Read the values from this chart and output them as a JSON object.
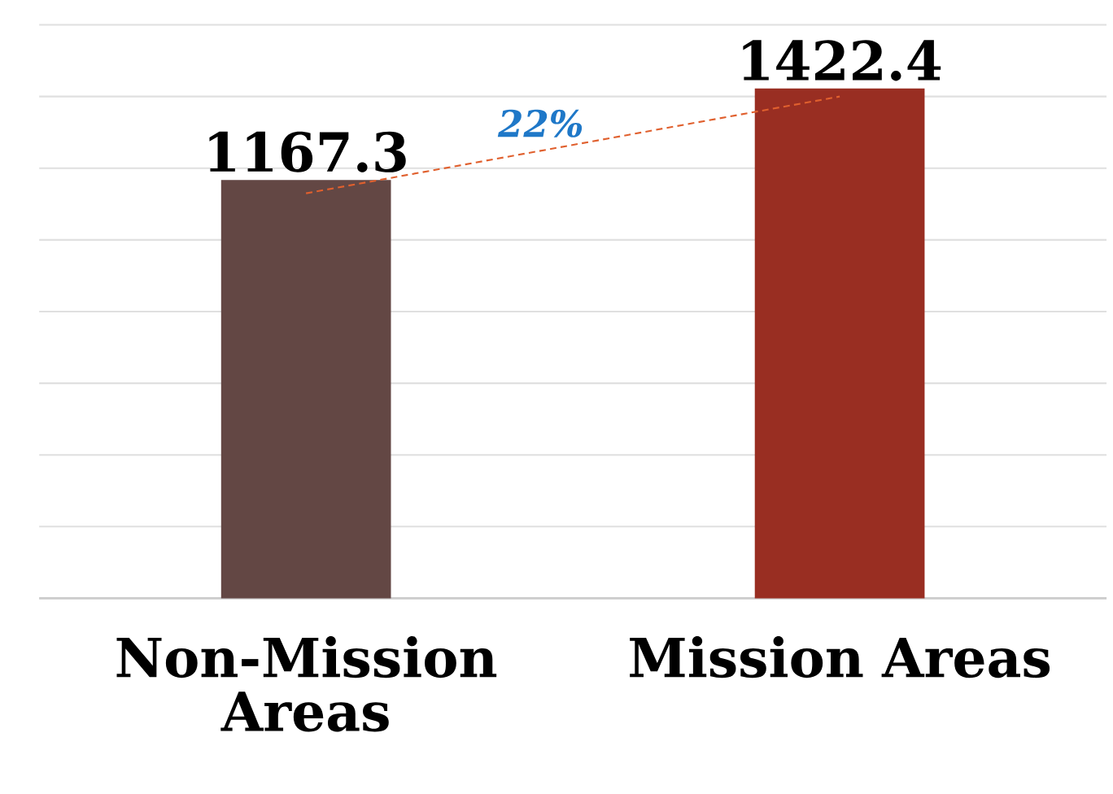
{
  "chart_data": {
    "type": "bar",
    "categories": [
      "Non-Mission Areas",
      "Mission Areas"
    ],
    "series": [
      {
        "colors": [
          "#634744",
          "#992e22"
        ],
        "values": [
          1167.3,
          1422.4
        ],
        "value_labels": [
          "1167.3",
          "1422.4"
        ]
      },
      {
        "type": "line",
        "color": "#e0602e",
        "line_style": "dashed",
        "marker": "none",
        "values": [
          1130,
          1400
        ]
      }
    ],
    "grid": "y",
    "tick_labels": "x",
    "annotations": [
      "22%"
    ]
  }
}
